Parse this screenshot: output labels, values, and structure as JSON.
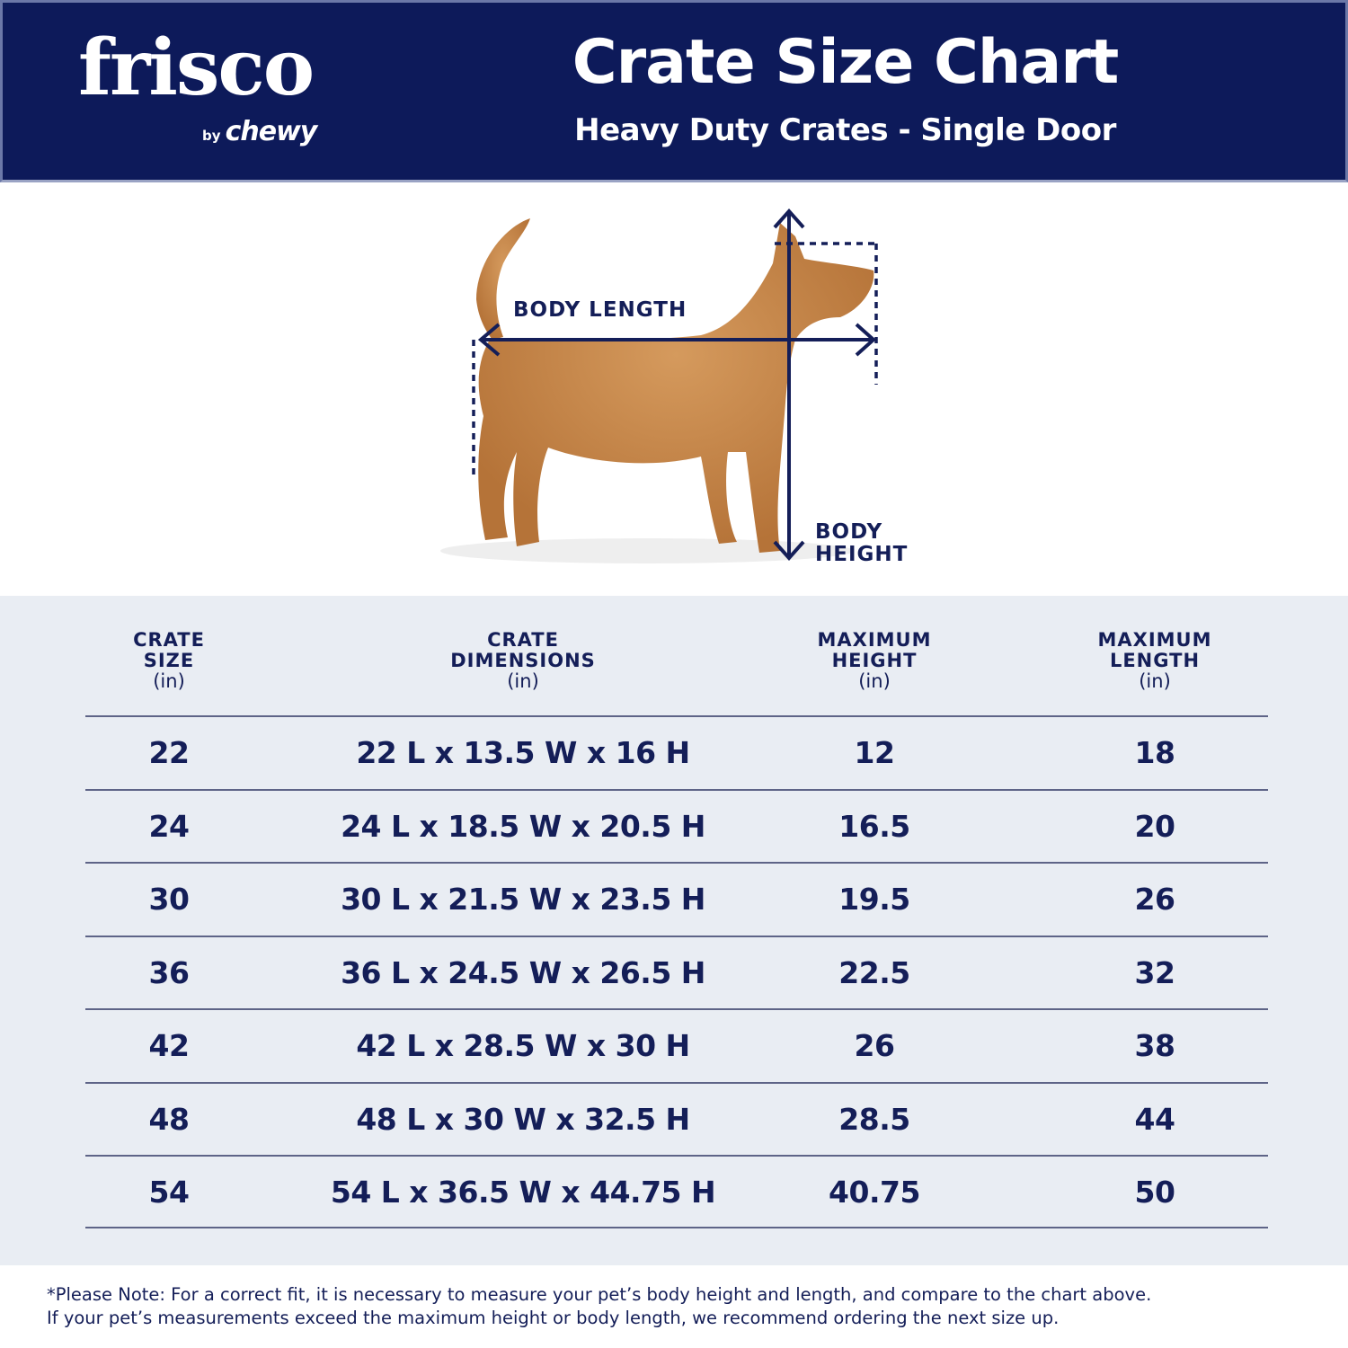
{
  "header": {
    "logo": {
      "brand": "frisco",
      "by": "by",
      "parent": "chewy"
    },
    "title": "Crate Size Chart",
    "subtitle": "Heavy Duty Crates - Single Door"
  },
  "diagram": {
    "body_length_label": "BODY LENGTH",
    "body_height_label_1": "BODY",
    "body_height_label_2": "HEIGHT"
  },
  "table": {
    "headers": [
      {
        "line1": "CRATE",
        "line2": "SIZE",
        "unit": "(in)"
      },
      {
        "line1": "CRATE",
        "line2": "DIMENSIONS",
        "unit": "(in)"
      },
      {
        "line1": "MAXIMUM",
        "line2": "HEIGHT",
        "unit": "(in)"
      },
      {
        "line1": "MAXIMUM",
        "line2": "LENGTH",
        "unit": "(in)"
      }
    ],
    "rows": [
      [
        "22",
        "22 L x 13.5 W x 16 H",
        "12",
        "18"
      ],
      [
        "24",
        "24 L x 18.5 W x 20.5 H",
        "16.5",
        "20"
      ],
      [
        "30",
        "30 L x 21.5 W x 23.5 H",
        "19.5",
        "26"
      ],
      [
        "36",
        "36 L x 24.5 W x 26.5 H",
        "22.5",
        "32"
      ],
      [
        "42",
        "42 L x 28.5 W x 30 H",
        "26",
        "38"
      ],
      [
        "48",
        "48 L x 30 W x 32.5 H",
        "28.5",
        "44"
      ],
      [
        "54",
        "54 L x 36.5 W x 44.75 H",
        "40.75",
        "50"
      ]
    ]
  },
  "footer": {
    "line1": "*Please Note: For a correct fit, it is necessary to measure your pet’s body height and length, and compare to the chart above.",
    "line2": "If your pet’s measurements exceed the maximum height or body length, we recommend ordering the next size up."
  },
  "colors": {
    "navy": "#0d1a5a",
    "text": "#141e58",
    "table_bg": "#e9edf3",
    "dog": "#c8894e"
  }
}
